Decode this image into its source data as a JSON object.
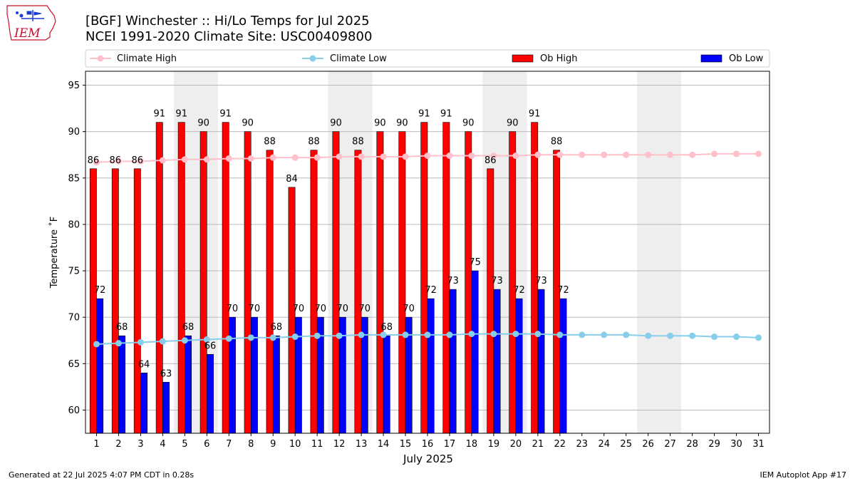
{
  "header": {
    "logo_text": "IEM",
    "title_line1": "[BGF] Winchester :: Hi/Lo Temps for Jul 2025",
    "title_line2": "NCEI 1991-2020 Climate Site: USC00409800"
  },
  "footer": {
    "left": "Generated at 22 Jul 2025 4:07 PM CDT in 0.28s",
    "right": "IEM Autoplot App #17"
  },
  "colors": {
    "ob_high": "#ff0000",
    "ob_low": "#0000ff",
    "climate_high": "#ffc0cb",
    "climate_low": "#87ceeb",
    "weekend_shade": "#eeeeee",
    "grid": "#b0b0b0"
  },
  "chart_data": {
    "type": "bar",
    "xlabel": "July 2025",
    "ylabel": "Temperature ˚F",
    "ylim": [
      57.5,
      96.5
    ],
    "yticks": [
      60,
      65,
      70,
      75,
      80,
      85,
      90,
      95
    ],
    "xlim": [
      0.5,
      31.5
    ],
    "legend_position": "top",
    "grid": "horizontal",
    "days": [
      1,
      2,
      3,
      4,
      5,
      6,
      7,
      8,
      9,
      10,
      11,
      12,
      13,
      14,
      15,
      16,
      17,
      18,
      19,
      20,
      21,
      22,
      23,
      24,
      25,
      26,
      27,
      28,
      29,
      30,
      31
    ],
    "shaded_days": [
      5,
      6,
      12,
      13,
      19,
      20,
      26,
      27
    ],
    "series": [
      {
        "name": "Climate High",
        "kind": "line",
        "values": [
          86.7,
          86.8,
          86.8,
          86.9,
          87.0,
          87.0,
          87.1,
          87.1,
          87.2,
          87.2,
          87.2,
          87.3,
          87.3,
          87.3,
          87.3,
          87.4,
          87.4,
          87.4,
          87.4,
          87.4,
          87.5,
          87.5,
          87.5,
          87.5,
          87.5,
          87.5,
          87.5,
          87.5,
          87.6,
          87.6,
          87.6
        ]
      },
      {
        "name": "Climate Low",
        "kind": "line",
        "values": [
          67.1,
          67.2,
          67.3,
          67.4,
          67.5,
          67.6,
          67.7,
          67.8,
          67.8,
          67.9,
          68.0,
          68.0,
          68.1,
          68.1,
          68.1,
          68.1,
          68.1,
          68.2,
          68.2,
          68.2,
          68.2,
          68.1,
          68.1,
          68.1,
          68.1,
          68.0,
          68.0,
          68.0,
          67.9,
          67.9,
          67.8
        ]
      },
      {
        "name": "Ob High",
        "kind": "bar",
        "values": [
          86,
          86,
          86,
          91,
          91,
          90,
          91,
          90,
          88,
          84,
          88,
          90,
          88,
          90,
          90,
          91,
          91,
          90,
          86,
          90,
          91,
          88
        ]
      },
      {
        "name": "Ob Low",
        "kind": "bar",
        "values": [
          72,
          68,
          64,
          63,
          68,
          66,
          70,
          70,
          68,
          70,
          70,
          70,
          70,
          68,
          70,
          72,
          73,
          75,
          73,
          72,
          73,
          72
        ]
      }
    ]
  }
}
